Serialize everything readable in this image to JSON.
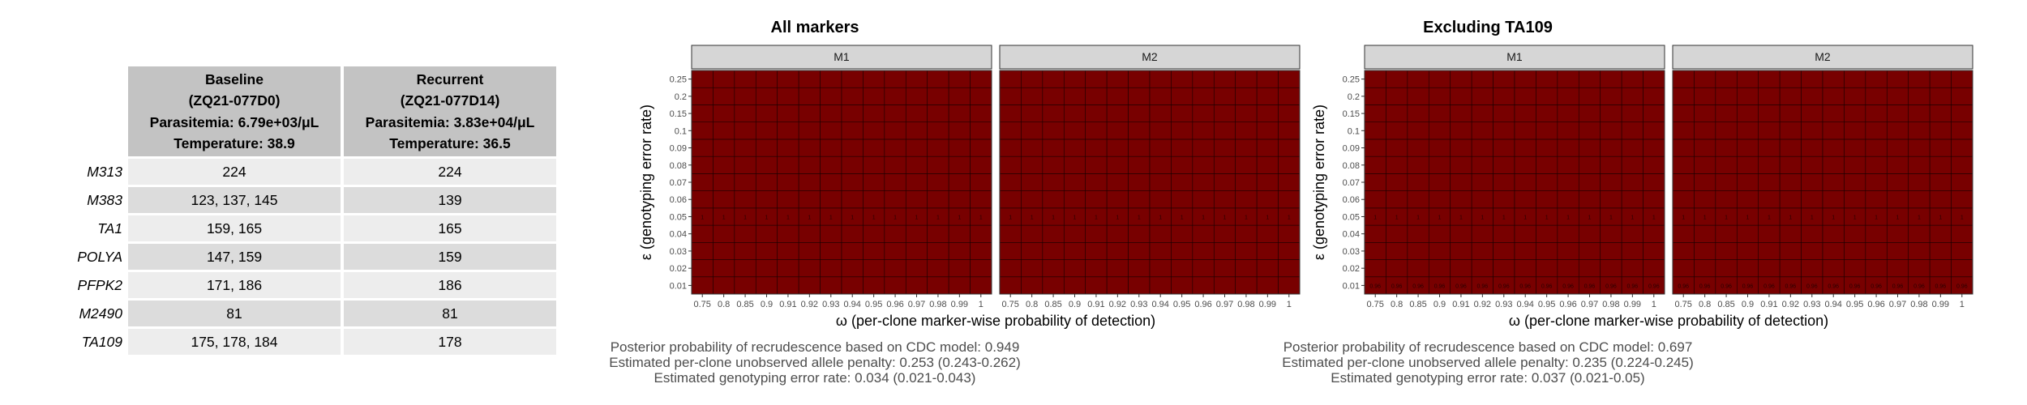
{
  "table": {
    "columns": [
      {
        "lines": [
          "Baseline",
          "(ZQ21-077D0)",
          "Parasitemia: 6.79e+03/μL",
          "Temperature: 38.9"
        ]
      },
      {
        "lines": [
          "Recurrent",
          "(ZQ21-077D14)",
          "Parasitemia: 3.83e+04/μL",
          "Temperature: 36.5"
        ]
      }
    ],
    "rows": [
      {
        "marker": "M313",
        "baseline": "224",
        "recurrent": "224"
      },
      {
        "marker": "M383",
        "baseline": "123, 137, 145",
        "recurrent": "139"
      },
      {
        "marker": "TA1",
        "baseline": "159, 165",
        "recurrent": "165"
      },
      {
        "marker": "POLYA",
        "baseline": "147, 159",
        "recurrent": "159"
      },
      {
        "marker": "PFPK2",
        "baseline": "171, 186",
        "recurrent": "186"
      },
      {
        "marker": "M2490",
        "baseline": "81",
        "recurrent": "81"
      },
      {
        "marker": "TA109",
        "baseline": "175, 178, 184",
        "recurrent": "178"
      }
    ]
  },
  "chart_data": [
    {
      "type": "heatmap",
      "title": "All markers",
      "facets": [
        "M1",
        "M2"
      ],
      "xlabel": "ω (per-clone marker-wise probability of detection)",
      "ylabel": "ε (genotyping error rate)",
      "x": [
        "0.75",
        "0.8",
        "0.85",
        "0.9",
        "0.91",
        "0.92",
        "0.93",
        "0.94",
        "0.95",
        "0.96",
        "0.97",
        "0.98",
        "0.99",
        "1"
      ],
      "y": [
        "0.01",
        "0.02",
        "0.03",
        "0.04",
        "0.05",
        "0.06",
        "0.07",
        "0.08",
        "0.09",
        "0.1",
        "0.15",
        "0.2",
        "0.25"
      ],
      "cell_color": "#780000",
      "dense_row": "0.05",
      "dense_row_value": "1",
      "caption": [
        "Posterior probability of recrudescence based on CDC model: 0.949",
        "Estimated per-clone unobserved allele penalty: 0.253 (0.243-0.262)",
        "Estimated genotyping error rate: 0.034 (0.021-0.043)"
      ]
    },
    {
      "type": "heatmap",
      "title": "Excluding TA109",
      "facets": [
        "M1",
        "M2"
      ],
      "xlabel": "ω (per-clone marker-wise probability of detection)",
      "ylabel": "ε (genotyping error rate)",
      "x": [
        "0.75",
        "0.8",
        "0.85",
        "0.9",
        "0.91",
        "0.92",
        "0.93",
        "0.94",
        "0.95",
        "0.96",
        "0.97",
        "0.98",
        "0.99",
        "1"
      ],
      "y": [
        "0.01",
        "0.02",
        "0.03",
        "0.04",
        "0.05",
        "0.06",
        "0.07",
        "0.08",
        "0.09",
        "0.1",
        "0.15",
        "0.2",
        "0.25"
      ],
      "cell_color": "#780000",
      "dense_row": "0.05",
      "dense_row_value": "1",
      "bottom_row": "0.01",
      "bottom_row_value": "0.96",
      "caption": [
        "Posterior probability of recrudescence based on CDC model: 0.697",
        "Estimated per-clone unobserved allele penalty: 0.235 (0.224-0.245)",
        "Estimated genotyping error rate: 0.037 (0.021-0.05)"
      ]
    }
  ]
}
